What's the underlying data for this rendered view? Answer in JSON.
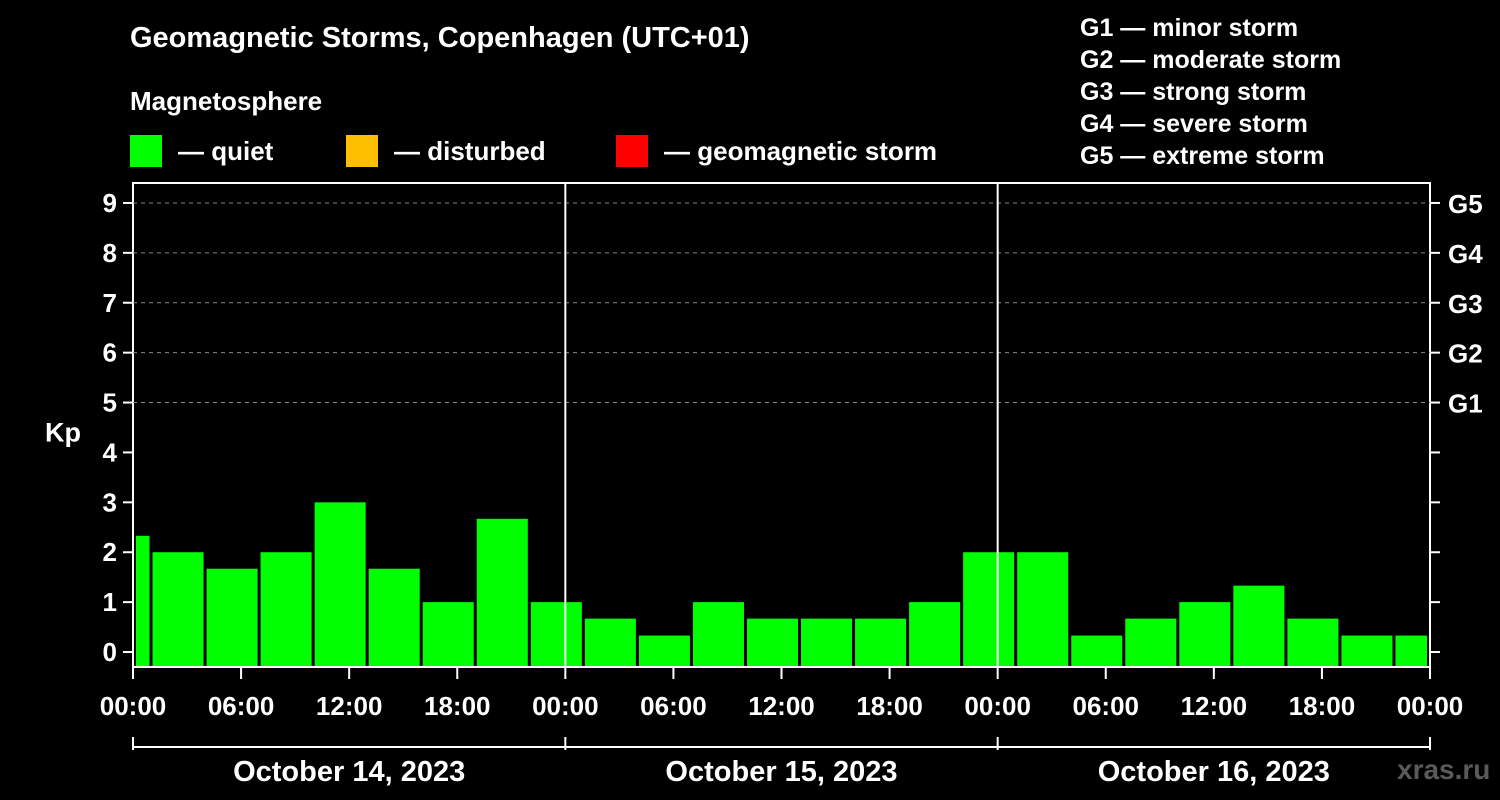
{
  "title": "Geomagnetic Storms, Copenhagen (UTC+01)",
  "subtitle": "Magnetosphere",
  "legend": [
    {
      "label": "— quiet",
      "color": "#00ff00"
    },
    {
      "label": "— disturbed",
      "color": "#ffbf00"
    },
    {
      "label": "— geomagnetic storm",
      "color": "#ff0000"
    }
  ],
  "storm_scale": [
    "G1 — minor storm",
    "G2 — moderate storm",
    "G3 — strong storm",
    "G4 — severe storm",
    "G5 — extreme storm"
  ],
  "watermark": "xras.ru",
  "chart_data": {
    "type": "bar",
    "title": "Geomagnetic Storms, Copenhagen (UTC+01)",
    "ylabel": "Kp",
    "ylim": [
      -0.3,
      9.4
    ],
    "y_ticks": [
      "0",
      "1",
      "2",
      "3",
      "4",
      "5",
      "6",
      "7",
      "8",
      "9"
    ],
    "right_axis_labels": [
      {
        "kp": 5,
        "label": "G1"
      },
      {
        "kp": 6,
        "label": "G2"
      },
      {
        "kp": 7,
        "label": "G3"
      },
      {
        "kp": 8,
        "label": "G4"
      },
      {
        "kp": 9,
        "label": "G5"
      }
    ],
    "x_ticks": [
      "00:00",
      "06:00",
      "12:00",
      "18:00",
      "00:00",
      "06:00",
      "12:00",
      "18:00",
      "00:00",
      "06:00",
      "12:00",
      "18:00",
      "00:00"
    ],
    "x_hours_range": [
      0,
      72
    ],
    "dates": [
      "October 14, 2023",
      "October 15, 2023",
      "October 16, 2023"
    ],
    "grid": "dashed horizontal at Kp 5-9",
    "series": [
      {
        "name": "Kp",
        "color": "#00ff00",
        "bars": [
          {
            "start": 0,
            "end": 1,
            "value": 2.33
          },
          {
            "start": 1,
            "end": 4,
            "value": 2.0
          },
          {
            "start": 4,
            "end": 7,
            "value": 1.67
          },
          {
            "start": 7,
            "end": 10,
            "value": 2.0
          },
          {
            "start": 10,
            "end": 13,
            "value": 3.0
          },
          {
            "start": 13,
            "end": 16,
            "value": 1.67
          },
          {
            "start": 16,
            "end": 19,
            "value": 1.0
          },
          {
            "start": 19,
            "end": 22,
            "value": 2.67
          },
          {
            "start": 22,
            "end": 25,
            "value": 1.0
          },
          {
            "start": 25,
            "end": 28,
            "value": 0.67
          },
          {
            "start": 28,
            "end": 31,
            "value": 0.33
          },
          {
            "start": 31,
            "end": 34,
            "value": 1.0
          },
          {
            "start": 34,
            "end": 37,
            "value": 0.67
          },
          {
            "start": 37,
            "end": 40,
            "value": 0.67
          },
          {
            "start": 40,
            "end": 43,
            "value": 0.67
          },
          {
            "start": 43,
            "end": 46,
            "value": 1.0
          },
          {
            "start": 46,
            "end": 49,
            "value": 2.0
          },
          {
            "start": 49,
            "end": 52,
            "value": 2.0
          },
          {
            "start": 52,
            "end": 55,
            "value": 0.33
          },
          {
            "start": 55,
            "end": 58,
            "value": 0.67
          },
          {
            "start": 58,
            "end": 61,
            "value": 1.0
          },
          {
            "start": 61,
            "end": 64,
            "value": 1.33
          },
          {
            "start": 64,
            "end": 67,
            "value": 0.67
          },
          {
            "start": 67,
            "end": 70,
            "value": 0.33
          },
          {
            "start": 70,
            "end": 72,
            "value": 0.33
          }
        ]
      }
    ]
  }
}
